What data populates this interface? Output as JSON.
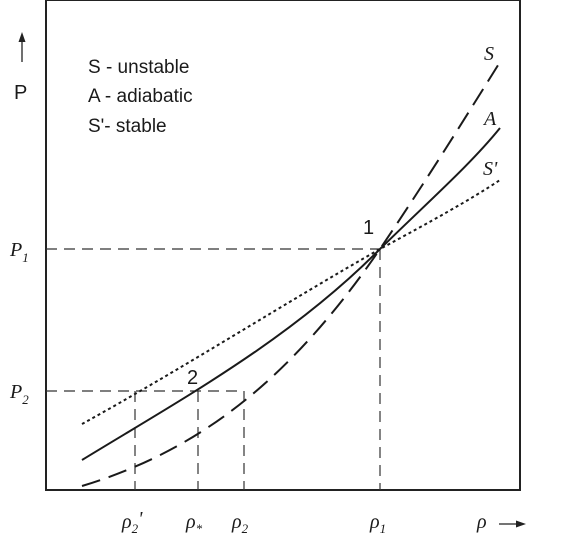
{
  "axes": {
    "y_label": "P",
    "x_label": "ρ",
    "arrow_glyph": "→"
  },
  "legend": [
    {
      "text": "S - unstable"
    },
    {
      "text": "A - adiabatic"
    },
    {
      "text": "S'- stable"
    }
  ],
  "curves": [
    {
      "name": "S",
      "label": "S",
      "style": "dashed"
    },
    {
      "name": "A",
      "label": "A",
      "style": "solid"
    },
    {
      "name": "S'",
      "label": "S'",
      "style": "dotted"
    }
  ],
  "points": [
    {
      "label": "1"
    },
    {
      "label": "2"
    }
  ],
  "y_ticks": [
    {
      "main": "P",
      "sub": "1"
    },
    {
      "main": "P",
      "sub": "2"
    }
  ],
  "x_ticks": [
    {
      "main": "ρ",
      "sub": "2",
      "suffix": "'"
    },
    {
      "main": "ρ",
      "sub": "*",
      "suffix": ""
    },
    {
      "main": "ρ",
      "sub": "2",
      "suffix": ""
    },
    {
      "main": "ρ",
      "sub": "1",
      "suffix": ""
    }
  ]
}
